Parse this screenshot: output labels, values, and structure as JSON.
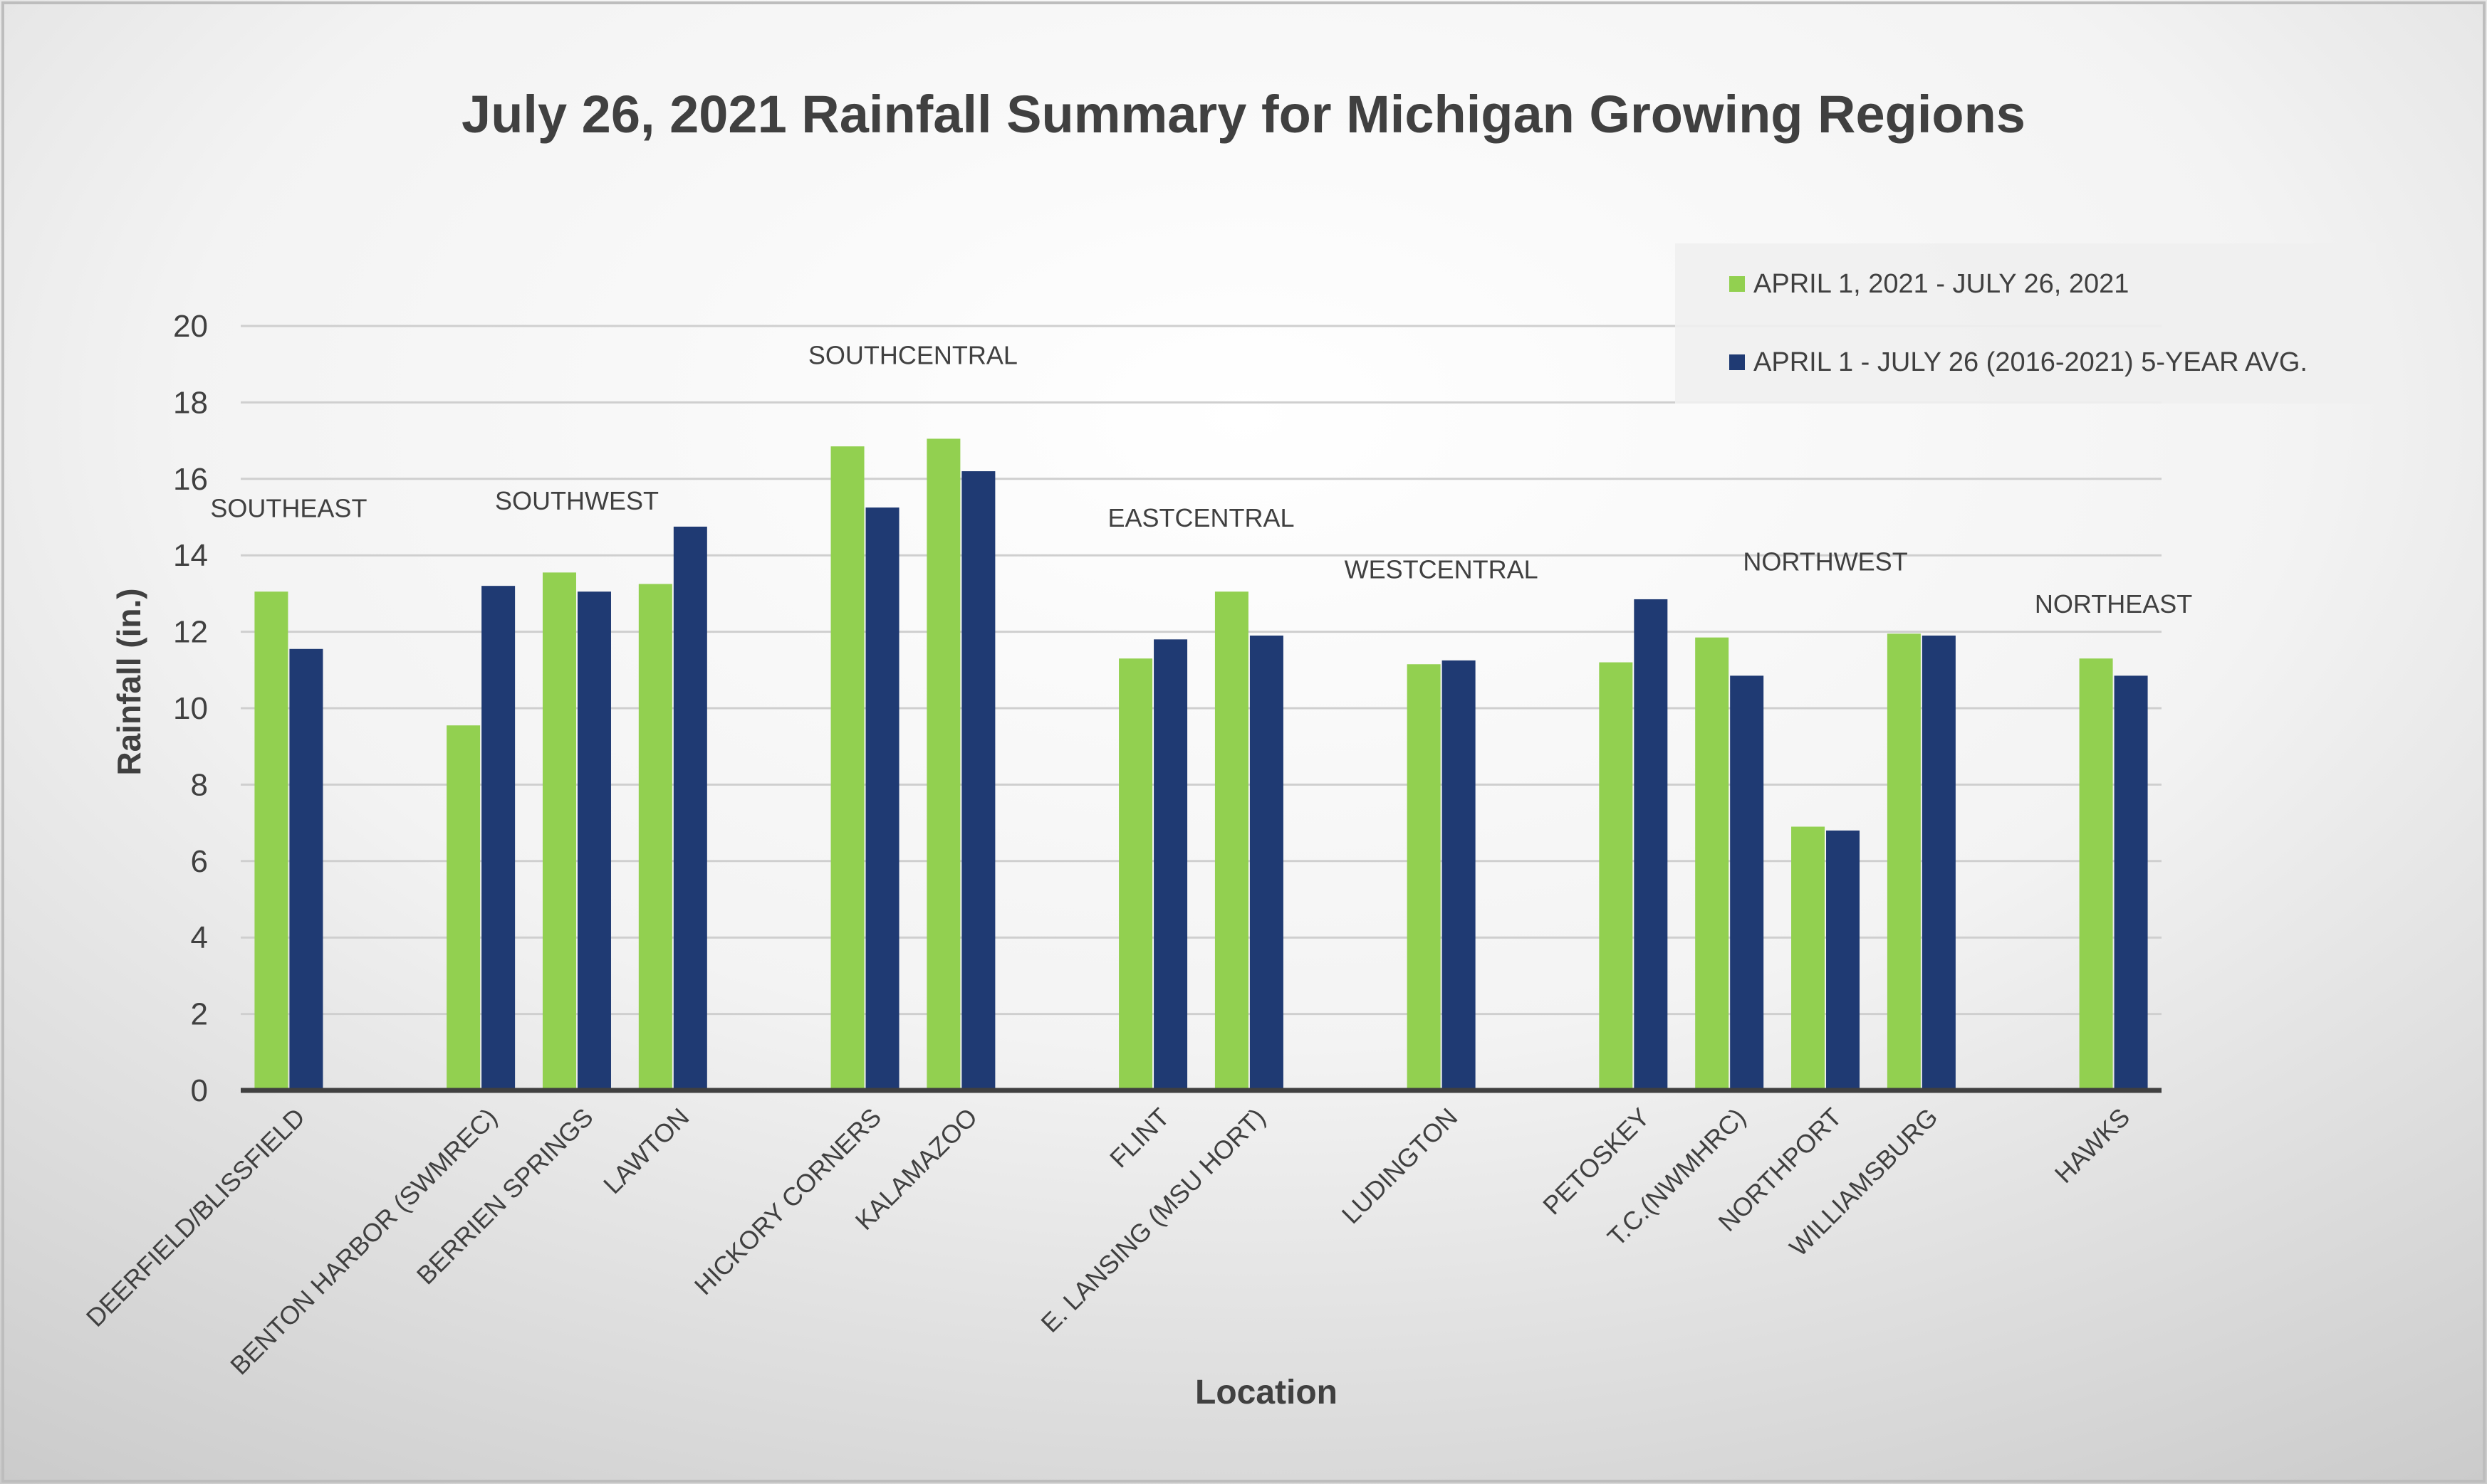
{
  "chart_data": {
    "type": "bar",
    "title": "July 26, 2021 Rainfall Summary for Michigan Growing Regions",
    "xlabel": "Location",
    "ylabel": "Rainfall (in.)",
    "ylim": [
      0,
      20
    ],
    "yticks": [
      0,
      2,
      4,
      6,
      8,
      10,
      12,
      14,
      16,
      18,
      20
    ],
    "grid": true,
    "legend_position": "top-right",
    "categories": [
      "DEERFIELD/BLISSFIELD",
      "",
      "BENTON HARBOR (SWMREC)",
      "BERRIEN SPRINGS",
      "LAWTON",
      "",
      "HICKORY CORNERS",
      "KALAMAZOO",
      "",
      "FLINT",
      "E. LANSING (MSU HORT)",
      "",
      "LUDINGTON",
      "",
      "PETOSKEY",
      "T.C.(NWMHRC)",
      "NORTHPORT",
      "WILLIAMSBURG",
      "",
      "HAWKS"
    ],
    "series": [
      {
        "name": "APRIL 1, 2021 - JULY 26, 2021",
        "color": "#92D050",
        "values": [
          13.05,
          null,
          9.55,
          13.55,
          13.25,
          null,
          16.85,
          17.05,
          null,
          11.3,
          13.05,
          null,
          11.15,
          null,
          11.2,
          11.85,
          6.9,
          11.95,
          null,
          11.3
        ]
      },
      {
        "name": "APRIL 1 - JULY 26 (2016-2021) 5-YEAR AVG.",
        "color": "#1F3A73",
        "values": [
          11.55,
          null,
          13.2,
          13.05,
          14.75,
          null,
          15.25,
          16.2,
          null,
          11.8,
          11.9,
          null,
          11.25,
          null,
          12.85,
          10.85,
          6.8,
          11.9,
          null,
          10.85
        ]
      }
    ],
    "annotations": [
      {
        "text": "SOUTHEAST",
        "category_index": 0,
        "y": 15.0
      },
      {
        "text": "SOUTHWEST",
        "category_index": 3,
        "y": 15.2
      },
      {
        "text": "SOUTHCENTRAL",
        "category_index": 6.5,
        "y": 19.0
      },
      {
        "text": "EASTCENTRAL",
        "category_index": 9.5,
        "y": 14.75
      },
      {
        "text": "WESTCENTRAL",
        "category_index": 12,
        "y": 13.4
      },
      {
        "text": "NORTHWEST",
        "category_index": 16,
        "y": 13.6
      },
      {
        "text": "NORTHEAST",
        "category_index": 19,
        "y": 12.5
      }
    ]
  }
}
